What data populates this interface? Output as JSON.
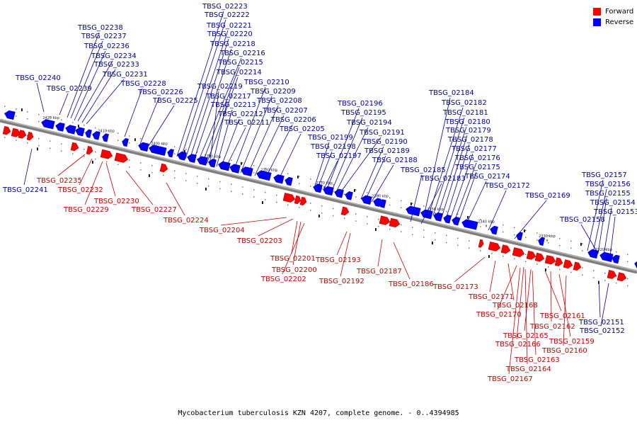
{
  "caption": "Mycobacterium tuberculosis KZN 4207, complete genome. - 0..4394985",
  "legend": [
    {
      "label": "Forward",
      "color": "#ff0000"
    },
    {
      "label": "Reverse",
      "color": "#0000ff"
    }
  ],
  "colors": {
    "forward": "#ff0000",
    "reverse": "#0000ff",
    "forward_text": "#cc0000",
    "reverse_text": "#000099",
    "backbone": "#7f7f7f"
  },
  "ticks": [
    "2420 kbp",
    "2410 kbp",
    "2400 kbp",
    "2390 kbp",
    "2380 kbp",
    "2370 kbp",
    "2360 kbp",
    "2350 kbp",
    "2340 kbp",
    "2330 kbp",
    "2320 kbp"
  ],
  "reverse_labels": [
    "TBSG_02240",
    "TBSG_02239",
    "TBSG_02238",
    "TBSG_02237",
    "TBSG_02236",
    "TBSG_02234",
    "TBSG_02233",
    "TBSG_02231",
    "TBSG_02228",
    "TBSG_02226",
    "TBSG_02225",
    "TBSG_02223",
    "TBSG_02222",
    "TBSG_02221",
    "TBSG_02220",
    "TBSG_02218",
    "TBSG_02216",
    "TBSG_02215",
    "TBSG_02214",
    "TBSG_02219",
    "TBSG_02217",
    "TBSG_02213",
    "TBSG_02212",
    "TBSG_02211",
    "TBSG_02210",
    "TBSG_02209",
    "TBSG_02208",
    "TBSG_02207",
    "TBSG_02206",
    "TBSG_02205",
    "TBSG_02199",
    "TBSG_02198",
    "TBSG_02197",
    "TBSG_02196",
    "TBSG_02195",
    "TBSG_02194",
    "TBSG_02191",
    "TBSG_02190",
    "TBSG_02189",
    "TBSG_02188",
    "TBSG_02184",
    "TBSG_02182",
    "TBSG_02181",
    "TBSG_02180",
    "TBSG_02179",
    "TBSG_02178",
    "TBSG_02177",
    "TBSG_02176",
    "TBSG_02175",
    "TBSG_02185",
    "TBSG_02183",
    "TBSG_02174",
    "TBSG_02172",
    "TBSG_02169",
    "TBSG_02157",
    "TBSG_02156",
    "TBSG_02155",
    "TBSG_02154",
    "TBSG_02153",
    "TBSG_02158",
    "TBSG_02241",
    "TBSG_02151",
    "TBSG_02152"
  ],
  "forward_labels": [
    "TBSG_02235",
    "TBSG_02232",
    "TBSG_02229",
    "TBSG_02230",
    "TBSG_02227",
    "TBSG_02224",
    "TBSG_02204",
    "TBSG_02203",
    "TBSG_02201",
    "TBSG_02200",
    "TBSG_02202",
    "TBSG_02193",
    "TBSG_02192",
    "TBSG_02187",
    "TBSG_02186",
    "TBSG_02173",
    "TBSG_02171",
    "TBSG_02168",
    "TBSG_02170",
    "TBSG_02161",
    "TBSG_02162",
    "TBSG_02165",
    "TBSG_02166",
    "TBSG_02159",
    "TBSG_02160",
    "TBSG_02163",
    "TBSG_02164",
    "TBSG_02167"
  ]
}
